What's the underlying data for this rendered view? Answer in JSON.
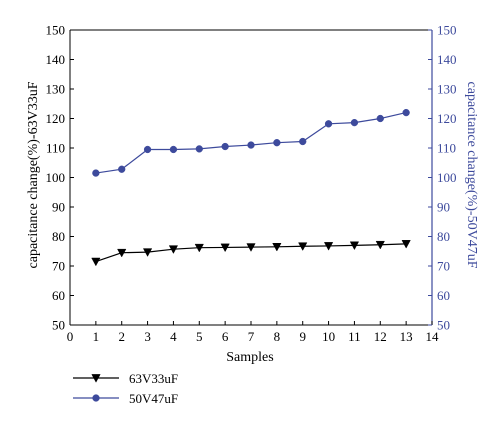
{
  "chart_data": {
    "type": "line",
    "xlabel": "Samples",
    "ylabel_left": "capacitance change(%)-63V33uF",
    "ylabel_right": "capacitance change(%)-50V47uF",
    "xlim": [
      0,
      14
    ],
    "ylim_left": [
      50,
      150
    ],
    "ylim_right": [
      50,
      150
    ],
    "x_ticks": [
      "0",
      "1",
      "2",
      "3",
      "4",
      "5",
      "6",
      "7",
      "8",
      "9",
      "10",
      "11",
      "12",
      "13",
      "14"
    ],
    "y_ticks_left": [
      "50",
      "60",
      "70",
      "80",
      "90",
      "100",
      "110",
      "120",
      "130",
      "140",
      "150"
    ],
    "y_ticks_right": [
      "50",
      "60",
      "70",
      "80",
      "90",
      "100",
      "110",
      "120",
      "130",
      "140",
      "150"
    ],
    "grid": false,
    "legend_position": "bottom-left",
    "series": [
      {
        "name": "63V33uF",
        "axis": "left",
        "color": "#000000",
        "marker": "triangle-down",
        "x": [
          1,
          2,
          3,
          4,
          5,
          6,
          7,
          8,
          9,
          10,
          11,
          12,
          13
        ],
        "values": [
          71.5,
          74.5,
          74.7,
          75.7,
          76.2,
          76.3,
          76.4,
          76.5,
          76.7,
          76.8,
          77.0,
          77.2,
          77.5
        ]
      },
      {
        "name": "50V47uF",
        "axis": "right",
        "color": "#3d4a9c",
        "marker": "circle",
        "x": [
          1,
          2,
          3,
          4,
          5,
          6,
          7,
          8,
          9,
          10,
          11,
          12,
          13
        ],
        "values": [
          101.5,
          102.8,
          109.5,
          109.5,
          109.7,
          110.5,
          111.0,
          111.8,
          112.2,
          118.2,
          118.6,
          120.0,
          122.0
        ]
      }
    ]
  },
  "colors": {
    "left_axis": "#000000",
    "right_axis": "#3d4a9c"
  }
}
